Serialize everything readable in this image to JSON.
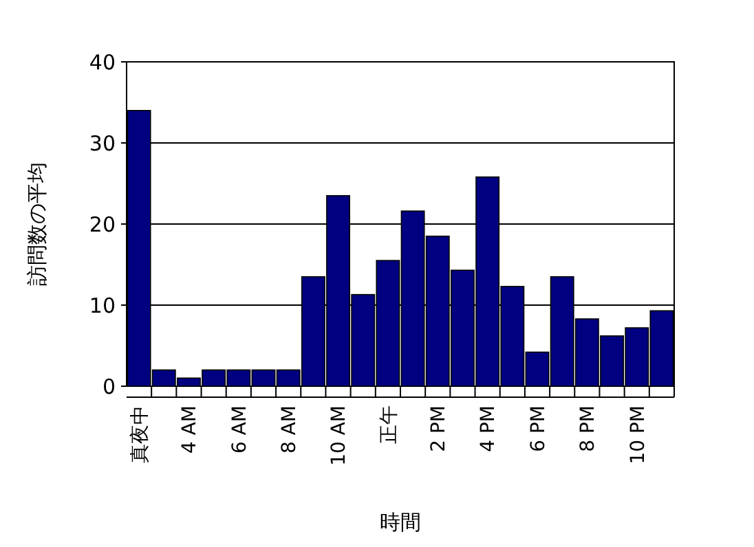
{
  "chart_data": {
    "type": "bar",
    "xlabel": "時間",
    "ylabel": "訪問数の平均",
    "categories": [
      "真夜中",
      null,
      "4 AM",
      null,
      "6 AM",
      null,
      "8 AM",
      null,
      "10 AM",
      null,
      "正午",
      null,
      "2 PM",
      null,
      "4 PM",
      null,
      "6 PM",
      null,
      "8 PM",
      null,
      "10 PM",
      null
    ],
    "values": [
      34,
      2,
      1,
      2,
      2,
      2,
      2,
      13.5,
      23.5,
      11.3,
      15.5,
      21.6,
      18.5,
      14.3,
      25.8,
      12.3,
      4.2,
      13.5,
      8.3,
      6.2,
      7.2,
      9.3
    ],
    "color": "#000080",
    "ylim": [
      0,
      40
    ],
    "yticks": [
      0,
      10,
      20,
      30,
      40
    ],
    "grid": "y"
  }
}
